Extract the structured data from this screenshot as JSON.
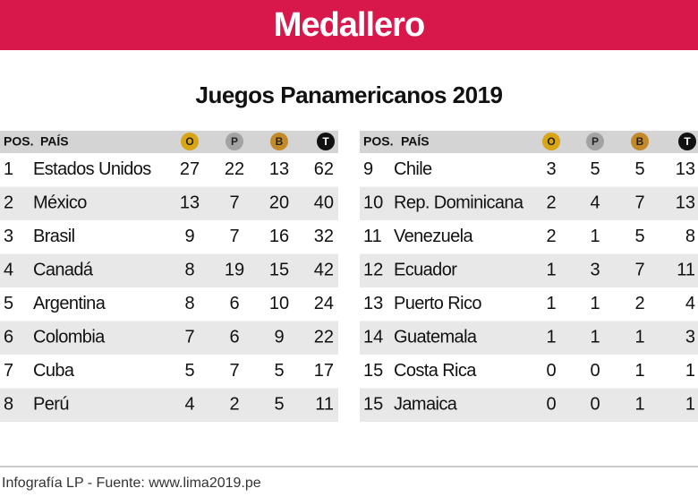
{
  "header": {
    "title": "Medallero"
  },
  "subtitle": "Juegos Panamericanos 2019",
  "tables": [
    {
      "columns": [
        "POS.",
        "PAÍS",
        "O",
        "P",
        "B",
        "T"
      ],
      "rows": [
        [
          1,
          "Estados Unidos",
          27,
          22,
          13,
          62
        ],
        [
          2,
          "México",
          13,
          7,
          20,
          40
        ],
        [
          3,
          "Brasil",
          9,
          7,
          16,
          32
        ],
        [
          4,
          "Canadá",
          8,
          19,
          15,
          42
        ],
        [
          5,
          "Argentina",
          8,
          6,
          10,
          24
        ],
        [
          6,
          "Colombia",
          7,
          6,
          9,
          22
        ],
        [
          7,
          "Cuba",
          5,
          7,
          5,
          17
        ],
        [
          8,
          "Perú",
          4,
          2,
          5,
          11
        ]
      ]
    },
    {
      "columns": [
        "POS.",
        "PAÍS",
        "O",
        "P",
        "B",
        "T"
      ],
      "rows": [
        [
          9,
          "Chile",
          3,
          5,
          5,
          13
        ],
        [
          10,
          "Rep. Dominicana",
          2,
          4,
          7,
          13
        ],
        [
          11,
          "Venezuela",
          2,
          1,
          5,
          8
        ],
        [
          12,
          "Ecuador",
          1,
          3,
          7,
          11
        ],
        [
          13,
          "Puerto Rico",
          1,
          1,
          2,
          4
        ],
        [
          14,
          "Guatemala",
          1,
          1,
          1,
          3
        ],
        [
          15,
          "Costa Rica",
          0,
          0,
          1,
          1
        ],
        [
          15,
          "Jamaica",
          0,
          0,
          1,
          1
        ]
      ]
    }
  ],
  "footer": "Infografía LP - Fuente: www.lima2019.pe"
}
